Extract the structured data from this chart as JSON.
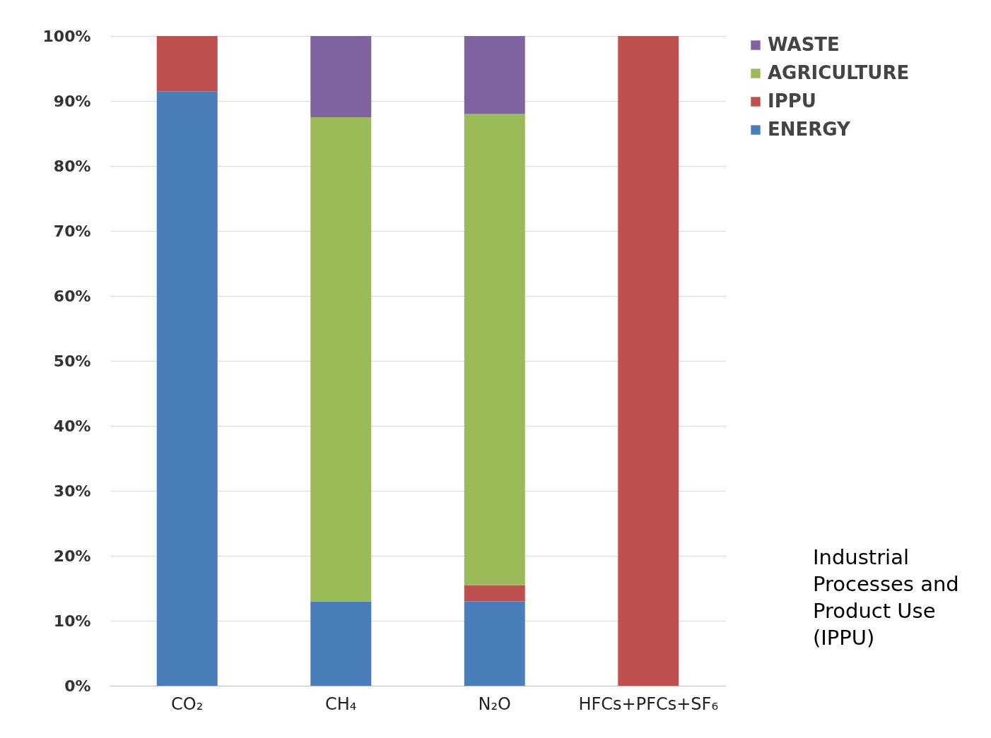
{
  "chart_data": {
    "type": "bar",
    "stacked": true,
    "categories": [
      "CO₂",
      "CH₄",
      "N₂O",
      "HFCs+PFCs+SF₆"
    ],
    "series": [
      {
        "name": "ENERGY",
        "color": "#4a7ebb",
        "values": [
          91.5,
          13,
          13,
          null
        ]
      },
      {
        "name": "IPPU",
        "color": "#c0504d",
        "values": [
          8.5,
          null,
          2.5,
          100
        ]
      },
      {
        "name": "AGRICULTURE",
        "color": "#9bbb59",
        "values": [
          null,
          74.5,
          72.5,
          null
        ]
      },
      {
        "name": "WASTE",
        "color": "#8064a2",
        "values": [
          null,
          12.5,
          12,
          null
        ]
      }
    ],
    "ylim": [
      0,
      100
    ],
    "yticks": [
      {
        "value": 0,
        "label": "0%"
      },
      {
        "value": 10,
        "label": "10%"
      },
      {
        "value": 20,
        "label": "20%"
      },
      {
        "value": 30,
        "label": "30%"
      },
      {
        "value": 40,
        "label": "40%"
      },
      {
        "value": 50,
        "label": "50%"
      },
      {
        "value": 60,
        "label": "60%"
      },
      {
        "value": 70,
        "label": "70%"
      },
      {
        "value": 80,
        "label": "80%"
      },
      {
        "value": 90,
        "label": "90%"
      },
      {
        "value": 100,
        "label": "100%"
      }
    ],
    "grid": "y",
    "legend": "right",
    "annotations": [
      "Industrial Processes and Product Use (IPPU)"
    ]
  }
}
